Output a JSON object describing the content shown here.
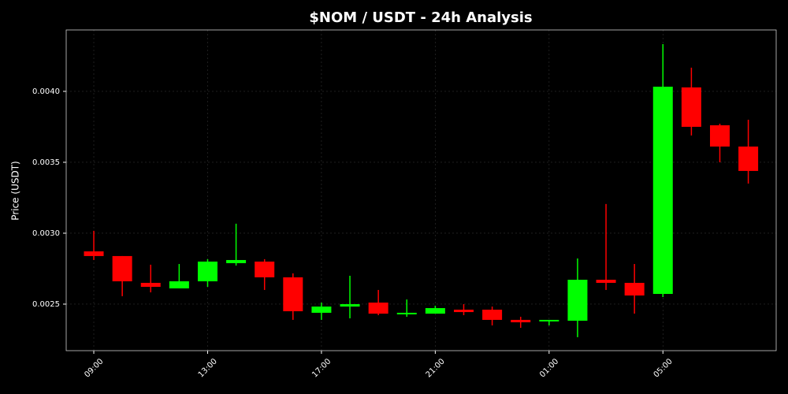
{
  "chart_data": {
    "type": "candlestick",
    "title": "$NOM / USDT - 24h Analysis",
    "y_label": "Price (USDT)",
    "categories": [
      "09:00",
      null,
      null,
      null,
      "13:00",
      null,
      null,
      null,
      "17:00",
      null,
      null,
      null,
      "21:00",
      null,
      null,
      null,
      "01:00",
      null,
      null,
      null,
      "05:00",
      null,
      null,
      null
    ],
    "open": [
      0.002872,
      0.002839,
      0.00265,
      0.002611,
      0.002661,
      0.002789,
      0.0028,
      0.002689,
      0.002439,
      0.002483,
      0.002511,
      0.002428,
      0.002433,
      0.002461,
      0.002461,
      0.002389,
      0.002378,
      0.002383,
      0.002672,
      0.00265,
      0.002572,
      0.004028,
      0.003761,
      0.003611
    ],
    "high": [
      0.003017,
      0.002839,
      0.002778,
      0.002783,
      0.002817,
      0.003067,
      0.002817,
      0.002717,
      0.002511,
      0.0027,
      0.0026,
      0.002533,
      0.002489,
      0.0025,
      0.002483,
      0.002411,
      0.002389,
      0.002822,
      0.003206,
      0.002783,
      0.004333,
      0.004167,
      0.003772,
      0.0038
    ],
    "low": [
      0.002811,
      0.002556,
      0.002583,
      0.002611,
      0.002622,
      0.002772,
      0.0026,
      0.002389,
      0.002389,
      0.0024,
      0.002422,
      0.002411,
      0.002433,
      0.002422,
      0.00235,
      0.002333,
      0.00235,
      0.002267,
      0.0026,
      0.002433,
      0.00255,
      0.003689,
      0.0035,
      0.00335
    ],
    "close": [
      0.002839,
      0.002661,
      0.002622,
      0.002661,
      0.0028,
      0.002811,
      0.002689,
      0.00245,
      0.002483,
      0.0025,
      0.002433,
      0.002439,
      0.002472,
      0.002444,
      0.002389,
      0.002372,
      0.002389,
      0.002672,
      0.00265,
      0.002561,
      0.004033,
      0.00375,
      0.003611,
      0.003439
    ],
    "up_color": "#00ff00",
    "down_color": "#ff0000",
    "ylim": [
      0.002172,
      0.004433
    ],
    "yticks": [
      0.0025,
      {
        "value": 0.003,
        "label": "0.0030"
      },
      0.0035,
      {
        "value": 0.004,
        "label": "0.0040"
      }
    ],
    "grid": true
  }
}
